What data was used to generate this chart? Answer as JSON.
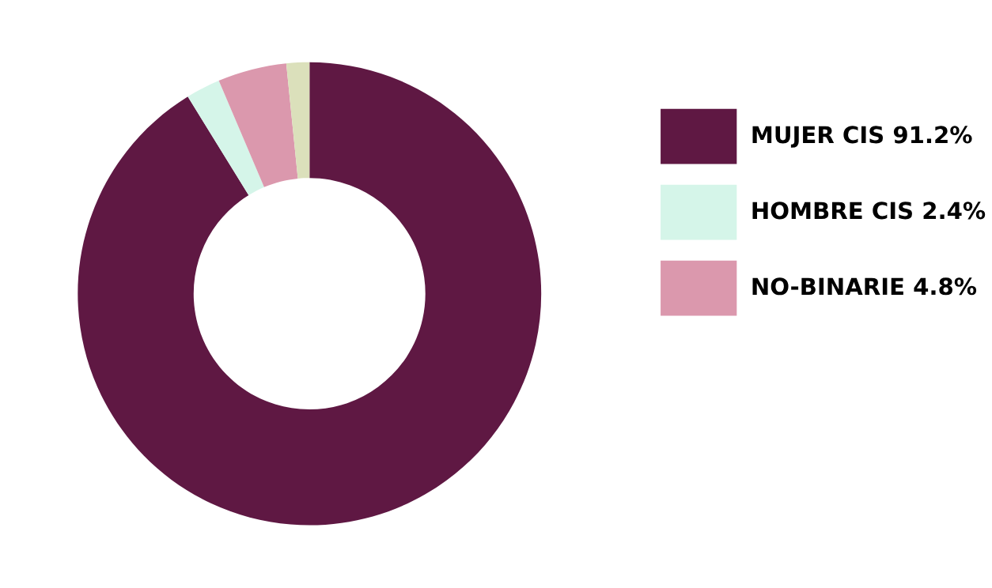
{
  "chart_data": {
    "type": "donut",
    "categories": [
      "MUJER CIS",
      "HOMBRE CIS",
      "NO-BINARIE",
      null
    ],
    "values": [
      91.2,
      2.4,
      4.8,
      1.6
    ],
    "value_labels": [
      "91.2%",
      "2.4%",
      "4.8%",
      null
    ],
    "colors": [
      "#5f1843",
      "#d5f5e9",
      "#db98ad",
      "#dbe0bb"
    ],
    "legend": "right"
  }
}
